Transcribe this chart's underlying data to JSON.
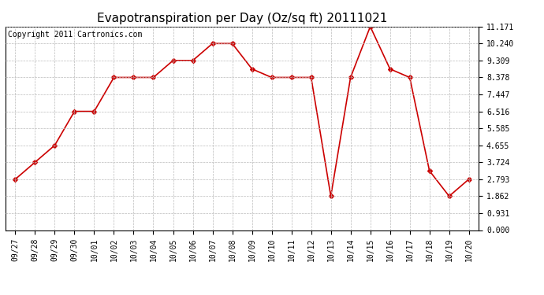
{
  "title": "Evapotranspiration per Day (Oz/sq ft) 20111021",
  "copyright": "Copyright 2011 Cartronics.com",
  "x_labels": [
    "09/27",
    "09/28",
    "09/29",
    "09/30",
    "10/01",
    "10/02",
    "10/03",
    "10/04",
    "10/05",
    "10/06",
    "10/07",
    "10/08",
    "10/09",
    "10/10",
    "10/11",
    "10/12",
    "10/13",
    "10/14",
    "10/15",
    "10/16",
    "10/17",
    "10/18",
    "10/19",
    "10/20"
  ],
  "y_values": [
    2.793,
    3.724,
    4.655,
    6.516,
    6.516,
    8.378,
    8.378,
    8.378,
    9.309,
    9.309,
    10.24,
    10.24,
    8.844,
    8.378,
    8.378,
    8.378,
    1.862,
    8.378,
    11.171,
    8.844,
    8.378,
    3.255,
    1.862,
    2.793
  ],
  "y_ticks": [
    0.0,
    0.931,
    1.862,
    2.793,
    3.724,
    4.655,
    5.585,
    6.516,
    7.447,
    8.378,
    9.309,
    10.24,
    11.171
  ],
  "line_color": "#cc0000",
  "marker": "D",
  "marker_size": 3,
  "background_color": "#ffffff",
  "grid_color": "#bbbbbb",
  "title_fontsize": 11,
  "copyright_fontsize": 7,
  "tick_fontsize": 7,
  "ylim": [
    0.0,
    11.171
  ],
  "fig_width": 6.9,
  "fig_height": 3.75,
  "dpi": 100
}
